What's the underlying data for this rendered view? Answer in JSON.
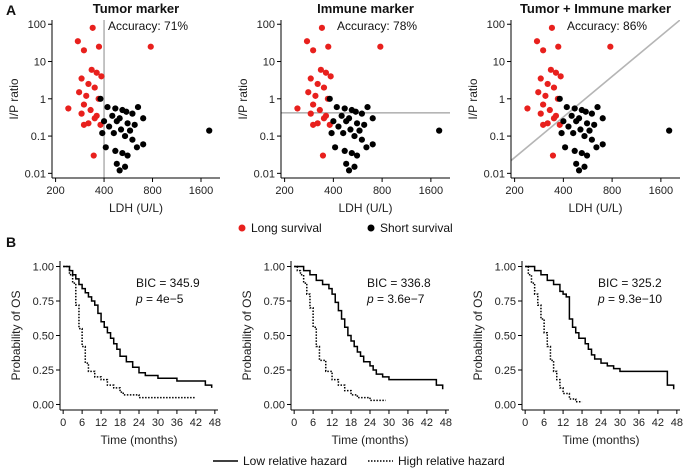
{
  "panel_labels": {
    "a": "A",
    "b": "B"
  },
  "legend_top": {
    "long": "Long survival",
    "short": "Short survival"
  },
  "legend_bottom": {
    "low": "Low relative hazard",
    "high": "High relative hazard"
  },
  "colors": {
    "long": "#e8201d",
    "short": "#000000",
    "ref_line": "#b5b5b5"
  },
  "chart_data": [
    {
      "type": "scatter",
      "title": "Tumor marker",
      "annotation": "Accuracy: 71%",
      "xlabel": "LDH (U/L)",
      "ylabel": "I/P ratio",
      "xticks": [
        200,
        400,
        800,
        1600
      ],
      "yticks": [
        "0.01",
        "0.1",
        "1",
        "10",
        "100"
      ],
      "xlim": [
        190,
        2100
      ],
      "ylim": [
        0.0075,
        130
      ],
      "xscale": "log",
      "yscale": "log",
      "reference": {
        "kind": "vertical",
        "x": 400
      },
      "series": [
        {
          "group": "long",
          "x": [
            340,
            275,
            372,
            300,
            335,
            360,
            385,
            290,
            320,
            350,
            280,
            310,
            370,
            240,
            300,
            330,
            290,
            360,
            350,
            780,
            320,
            380,
            345,
            300
          ],
          "y": [
            80,
            35,
            25,
            20,
            6,
            5,
            4,
            3.5,
            2.5,
            2,
            1.5,
            1.2,
            1,
            0.55,
            0.7,
            0.5,
            0.4,
            0.35,
            0.3,
            25,
            0.22,
            0.2,
            0.03,
            0.2
          ]
        },
        {
          "group": "short",
          "x": [
            380,
            420,
            470,
            520,
            550,
            600,
            650,
            700,
            450,
            500,
            400,
            480,
            560,
            620,
            430,
            510,
            580,
            390,
            460,
            540,
            600,
            410,
            470,
            520,
            560,
            640,
            700,
            1800,
            480,
            500,
            540
          ],
          "y": [
            1.0,
            0.6,
            0.55,
            0.5,
            0.45,
            0.4,
            0.6,
            0.3,
            0.35,
            0.3,
            0.25,
            0.25,
            0.22,
            0.2,
            0.18,
            0.15,
            0.14,
            0.12,
            0.12,
            0.1,
            0.08,
            0.05,
            0.04,
            0.035,
            0.03,
            0.05,
            0.06,
            0.14,
            0.018,
            0.012,
            0.015
          ]
        }
      ]
    },
    {
      "type": "scatter",
      "title": "Immune marker",
      "annotation": "Accuracy: 78%",
      "xlabel": "LDH (U/L)",
      "ylabel": "I/P ratio",
      "xticks": [
        200,
        400,
        800,
        1600
      ],
      "yticks": [
        "0.01",
        "0.1",
        "1",
        "10",
        "100"
      ],
      "xlim": [
        190,
        2100
      ],
      "ylim": [
        0.0075,
        130
      ],
      "xscale": "log",
      "yscale": "log",
      "reference": {
        "kind": "horizontal",
        "y": 0.42
      },
      "series": [
        {
          "group": "long",
          "x": [
            340,
            275,
            372,
            300,
            335,
            360,
            385,
            290,
            320,
            350,
            280,
            310,
            370,
            240,
            300,
            330,
            290,
            360,
            350,
            780,
            320,
            380,
            345,
            300
          ],
          "y": [
            80,
            35,
            25,
            20,
            6,
            5,
            4,
            3.5,
            2.5,
            2,
            1.5,
            1.2,
            1,
            0.55,
            0.7,
            0.5,
            0.4,
            0.35,
            0.3,
            25,
            0.22,
            0.2,
            0.03,
            0.2
          ]
        },
        {
          "group": "short",
          "x": [
            380,
            420,
            470,
            520,
            550,
            600,
            650,
            700,
            450,
            500,
            400,
            480,
            560,
            620,
            430,
            510,
            580,
            390,
            460,
            540,
            600,
            410,
            470,
            520,
            560,
            640,
            700,
            1800,
            480,
            500,
            540
          ],
          "y": [
            1.0,
            0.6,
            0.55,
            0.5,
            0.45,
            0.4,
            0.6,
            0.3,
            0.35,
            0.3,
            0.25,
            0.25,
            0.22,
            0.2,
            0.18,
            0.15,
            0.14,
            0.12,
            0.12,
            0.1,
            0.08,
            0.05,
            0.04,
            0.035,
            0.03,
            0.05,
            0.06,
            0.14,
            0.018,
            0.012,
            0.015
          ]
        }
      ]
    },
    {
      "type": "scatter",
      "title": "Tumor + Immune marker",
      "annotation": "Accuracy: 86%",
      "xlabel": "LDH (U/L)",
      "ylabel": "I/P ratio",
      "xticks": [
        200,
        400,
        800,
        1600
      ],
      "yticks": [
        "0.01",
        "0.1",
        "1",
        "10",
        "100"
      ],
      "xlim": [
        190,
        2100
      ],
      "ylim": [
        0.0075,
        130
      ],
      "xscale": "log",
      "yscale": "log",
      "reference": {
        "kind": "diagonal",
        "points": [
          [
            190,
            0.022
          ],
          [
            2100,
            130
          ]
        ]
      },
      "series": [
        {
          "group": "long",
          "x": [
            340,
            275,
            372,
            300,
            335,
            360,
            385,
            290,
            320,
            350,
            280,
            310,
            370,
            240,
            300,
            330,
            290,
            360,
            350,
            780,
            320,
            380,
            345,
            300
          ],
          "y": [
            80,
            35,
            25,
            20,
            6,
            5,
            4,
            3.5,
            2.5,
            2,
            1.5,
            1.2,
            1,
            0.55,
            0.7,
            0.5,
            0.4,
            0.35,
            0.3,
            25,
            0.22,
            0.2,
            0.03,
            0.2
          ]
        },
        {
          "group": "short",
          "x": [
            380,
            420,
            470,
            520,
            550,
            600,
            650,
            700,
            450,
            500,
            400,
            480,
            560,
            620,
            430,
            510,
            580,
            390,
            460,
            540,
            600,
            410,
            470,
            520,
            560,
            640,
            700,
            1800,
            480,
            500,
            540
          ],
          "y": [
            1.0,
            0.6,
            0.55,
            0.5,
            0.45,
            0.4,
            0.6,
            0.3,
            0.35,
            0.3,
            0.25,
            0.25,
            0.22,
            0.2,
            0.18,
            0.15,
            0.14,
            0.12,
            0.12,
            0.1,
            0.08,
            0.05,
            0.04,
            0.035,
            0.03,
            0.05,
            0.06,
            0.14,
            0.018,
            0.012,
            0.015
          ]
        }
      ]
    },
    {
      "type": "line",
      "stat_bic": "BIC = 345.9",
      "stat_p_label": "p",
      "stat_p_value": " = 4e−5",
      "xlabel": "Time (months)",
      "ylabel": "Probability of OS",
      "xticks": [
        "0",
        "6",
        "12",
        "18",
        "24",
        "30",
        "36",
        "42",
        "48"
      ],
      "yticks": [
        "0.00",
        "0.25",
        "0.50",
        "0.75",
        "1.00"
      ],
      "xlim": [
        -1,
        49
      ],
      "ylim": [
        -0.04,
        1.04
      ],
      "series": [
        {
          "group": "low",
          "x": [
            0,
            2,
            3,
            4,
            5,
            6,
            7,
            8,
            9,
            10,
            11,
            12,
            13,
            14,
            15,
            16,
            17,
            18,
            20,
            22,
            24,
            26,
            30,
            36,
            45,
            47
          ],
          "y": [
            1.0,
            0.97,
            0.94,
            0.91,
            0.87,
            0.84,
            0.81,
            0.78,
            0.75,
            0.72,
            0.66,
            0.6,
            0.56,
            0.52,
            0.48,
            0.44,
            0.4,
            0.35,
            0.31,
            0.27,
            0.23,
            0.21,
            0.19,
            0.17,
            0.14,
            0.12
          ]
        },
        {
          "group": "high",
          "x": [
            0,
            2,
            3,
            4,
            5,
            6,
            7,
            8,
            10,
            12,
            14,
            16,
            18,
            19,
            24,
            42
          ],
          "y": [
            1.0,
            0.94,
            0.88,
            0.72,
            0.55,
            0.42,
            0.3,
            0.24,
            0.2,
            0.18,
            0.14,
            0.12,
            0.09,
            0.07,
            0.05,
            0.05
          ]
        }
      ]
    },
    {
      "type": "line",
      "stat_bic": "BIC = 336.8",
      "stat_p_label": "p",
      "stat_p_value": " = 3.6e−7",
      "xlabel": "Time (months)",
      "ylabel": "Probability of OS",
      "xticks": [
        "0",
        "6",
        "12",
        "18",
        "24",
        "30",
        "36",
        "42",
        "48"
      ],
      "yticks": [
        "0.00",
        "0.25",
        "0.50",
        "0.75",
        "1.00"
      ],
      "xlim": [
        -1,
        49
      ],
      "ylim": [
        -0.04,
        1.04
      ],
      "series": [
        {
          "group": "low",
          "x": [
            0,
            3,
            5,
            7,
            9,
            11,
            12,
            13,
            14,
            15,
            16,
            17,
            18,
            19,
            20,
            21,
            22,
            24,
            25,
            26,
            28,
            30,
            42,
            45,
            47
          ],
          "y": [
            1.0,
            0.97,
            0.94,
            0.9,
            0.87,
            0.84,
            0.8,
            0.74,
            0.68,
            0.62,
            0.56,
            0.5,
            0.46,
            0.42,
            0.38,
            0.35,
            0.31,
            0.28,
            0.25,
            0.22,
            0.2,
            0.18,
            0.18,
            0.14,
            0.11
          ]
        },
        {
          "group": "high",
          "x": [
            0,
            1,
            2,
            3,
            4,
            5,
            6,
            7,
            8,
            10,
            12,
            14,
            16,
            18,
            20,
            24,
            29
          ],
          "y": [
            1.0,
            0.97,
            0.94,
            0.88,
            0.8,
            0.7,
            0.56,
            0.42,
            0.32,
            0.24,
            0.18,
            0.14,
            0.1,
            0.07,
            0.05,
            0.03,
            0.03
          ]
        }
      ]
    },
    {
      "type": "line",
      "stat_bic": "BIC = 325.2",
      "stat_p_label": "p",
      "stat_p_value": " = 9.3e−10",
      "xlabel": "Time (months)",
      "ylabel": "Probability of OS",
      "xticks": [
        "0",
        "6",
        "12",
        "18",
        "24",
        "30",
        "36",
        "42",
        "48"
      ],
      "yticks": [
        "0.00",
        "0.25",
        "0.50",
        "0.75",
        "1.00"
      ],
      "xlim": [
        -1,
        49
      ],
      "ylim": [
        -0.04,
        1.04
      ],
      "series": [
        {
          "group": "low",
          "x": [
            0,
            3,
            5,
            7,
            9,
            11,
            12,
            13,
            14,
            15,
            16,
            17,
            19,
            20,
            21,
            22,
            24,
            26,
            28,
            30,
            36,
            45,
            47
          ],
          "y": [
            1.0,
            0.97,
            0.94,
            0.9,
            0.87,
            0.82,
            0.8,
            0.78,
            0.62,
            0.56,
            0.52,
            0.48,
            0.44,
            0.4,
            0.36,
            0.33,
            0.3,
            0.28,
            0.26,
            0.24,
            0.24,
            0.14,
            0.11
          ]
        },
        {
          "group": "high",
          "x": [
            0,
            1,
            2,
            3,
            4,
            5,
            6,
            7,
            8,
            9,
            10,
            11,
            12,
            14,
            16,
            18
          ],
          "y": [
            1.0,
            0.94,
            0.88,
            0.8,
            0.72,
            0.62,
            0.52,
            0.42,
            0.32,
            0.24,
            0.18,
            0.12,
            0.08,
            0.04,
            0.02,
            0.02
          ]
        }
      ]
    }
  ]
}
